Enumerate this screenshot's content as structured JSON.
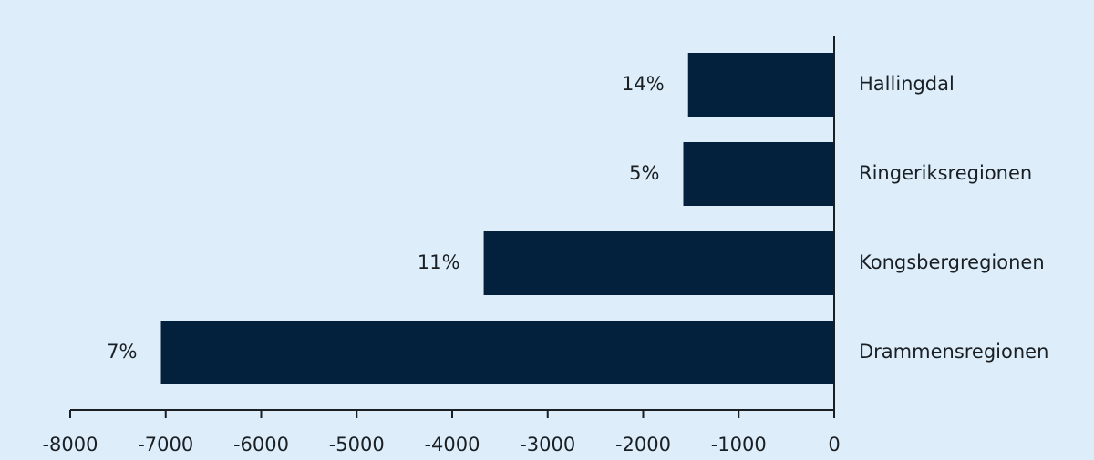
{
  "chart_data": {
    "type": "hbar",
    "categories": [
      "Hallingdal",
      "Ringeriksregionen",
      "Kongsbergregionen",
      "Drammensregionen"
    ],
    "values": [
      -1530,
      -1580,
      -3670,
      -7050
    ],
    "bar_labels": [
      "14%",
      "5%",
      "11%",
      "7%"
    ],
    "color": "#03213c",
    "xlim": [
      -8000,
      0
    ],
    "xticks": [
      -8000,
      -7000,
      -6000,
      -5000,
      -4000,
      -3000,
      -2000,
      -1000,
      0
    ]
  }
}
